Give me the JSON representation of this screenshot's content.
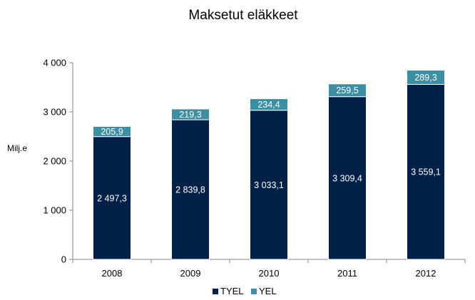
{
  "chart_data": {
    "type": "bar",
    "stacked": true,
    "title": "Maksetut eläkkeet",
    "ylabel": "Milj.e",
    "xlabel": "",
    "categories": [
      "2008",
      "2009",
      "2010",
      "2011",
      "2012"
    ],
    "series": [
      {
        "name": "TYEL",
        "color": "#002147",
        "values": [
          2497.3,
          2839.8,
          3033.1,
          3309.4,
          3559.1
        ],
        "labels": [
          "2 497,3",
          "2 839,8",
          "3 033,1",
          "3 309,4",
          "3 559,1"
        ]
      },
      {
        "name": "YEL",
        "color": "#3c8ea3",
        "values": [
          205.9,
          219.3,
          234.4,
          259.5,
          289.3
        ],
        "labels": [
          "205,9",
          "219,3",
          "234,4",
          "259,5",
          "289,3"
        ]
      }
    ],
    "ylim": [
      0,
      4000
    ],
    "yticks": [
      0,
      1000,
      2000,
      3000,
      4000
    ],
    "ytick_labels": [
      "0",
      "1 000",
      "2 000",
      "3 000",
      "4 000"
    ],
    "grid": false,
    "legend": "bottom-center"
  }
}
